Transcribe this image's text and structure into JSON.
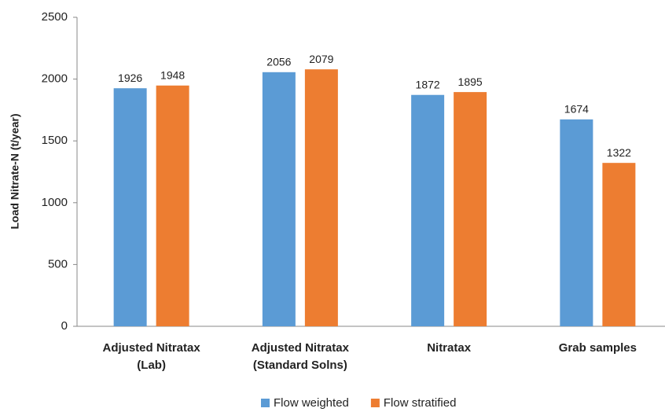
{
  "chart_data": {
    "type": "bar",
    "y_label": "Load Nitrate-N  (t/year)",
    "categories": [
      [
        "Adjusted Nitratax",
        "(Lab)"
      ],
      [
        "Adjusted Nitratax",
        "(Standard Solns)"
      ],
      [
        "Nitratax"
      ],
      [
        "Grab samples"
      ]
    ],
    "series": [
      {
        "name": "Flow weighted",
        "color": "#5b9bd5",
        "values": [
          1926,
          2056,
          1872,
          1674
        ]
      },
      {
        "name": "Flow stratified",
        "color": "#ed7d31",
        "values": [
          1948,
          2079,
          1895,
          1322
        ]
      }
    ],
    "ylim": [
      0,
      2500
    ],
    "yticks": [
      0,
      500,
      1000,
      1500,
      2000,
      2500
    ],
    "grid": false,
    "legend": "bottom"
  }
}
